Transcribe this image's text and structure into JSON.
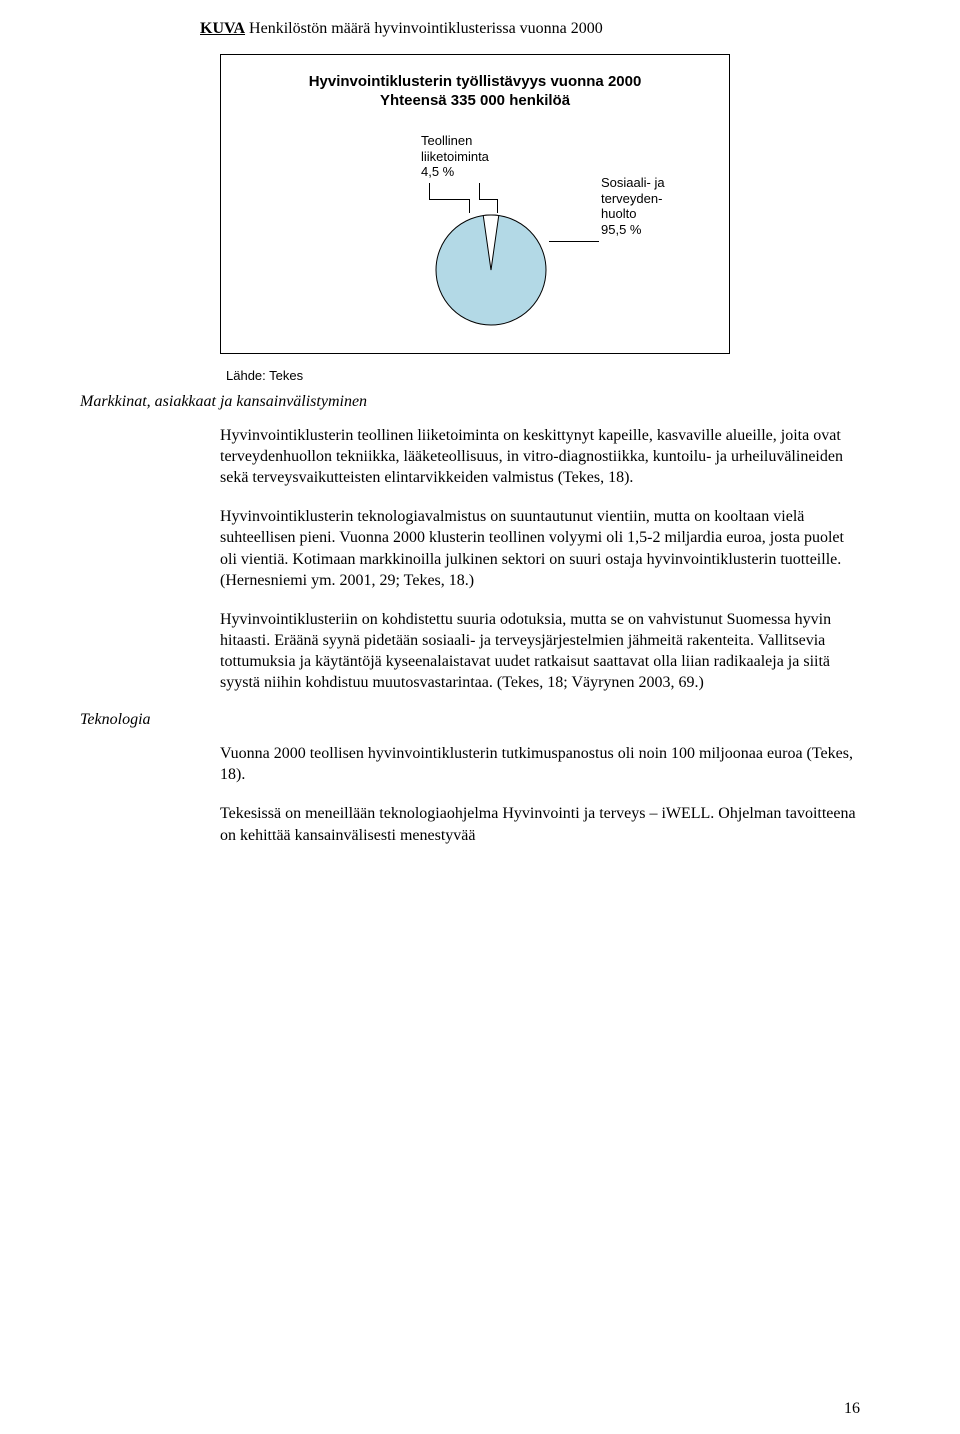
{
  "figure": {
    "kuva_label": "KUVA",
    "title_rest": " Henkilöstön määrä hyvinvointiklusterissa vuonna 2000",
    "chart": {
      "type": "pie",
      "heading_line1": "Hyvinvointiklusterin työllistävyys vuonna 2000",
      "heading_line2": "Yhteensä 335 000 henkilöä",
      "slice_small": {
        "label_line1": "Teollinen",
        "label_line2": "liiketoiminta",
        "label_line3": "4,5 %",
        "value_pct": 4.5,
        "color": "#ffffff"
      },
      "slice_large": {
        "label_line1": "Sosiaali- ja",
        "label_line2": "terveyden-",
        "label_line3": "huolto",
        "label_line4": "95,5 %",
        "value_pct": 95.5,
        "color": "#b3d9e6"
      },
      "outline_color": "#000000",
      "background_color": "#ffffff"
    },
    "source": "Lähde: Tekes"
  },
  "section1_heading": "Markkinat, asiakkaat ja kansainvälistyminen",
  "paragraphs_section1": [
    "Hyvinvointiklusterin teollinen liiketoiminta on keskittynyt kapeille, kasvaville alueille, joita ovat terveydenhuollon tekniikka, lääketeollisuus, in vitro-diagnostiikka, kuntoilu- ja urheiluvälineiden sekä terveysvaikutteisten elintarvikkeiden valmistus (Tekes, 18).",
    "Hyvinvointiklusterin teknologiavalmistus on suuntautunut vientiin, mutta on kooltaan vielä suhteellisen pieni. Vuonna 2000 klusterin teollinen volyymi oli 1,5-2 miljardia euroa, josta puolet oli vientiä. Kotimaan markkinoilla julkinen sektori on suuri ostaja hyvinvointiklusterin tuotteille. (Hernesniemi ym. 2001, 29; Tekes, 18.)",
    "Hyvinvointiklusteriin on kohdistettu suuria odotuksia, mutta se on vahvistunut Suomessa hyvin hitaasti. Eräänä syynä pidetään sosiaali- ja terveysjärjestelmien jähmeitä rakenteita. Vallitsevia tottumuksia ja käytäntöjä kyseenalaistavat uudet ratkaisut saattavat olla liian radikaaleja ja siitä syystä niihin kohdistuu muutosvastarintaa. (Tekes, 18; Väyrynen 2003, 69.)"
  ],
  "section2_heading": "Teknologia",
  "paragraphs_section2": [
    "Vuonna 2000 teollisen hyvinvointiklusterin tutkimuspanostus oli noin 100 miljoonaa euroa (Tekes, 18).",
    "Tekesissä on meneillään teknologiaohjelma Hyvinvointi ja terveys – iWELL. Ohjelman tavoitteena on kehittää kansainvälisesti menestyvää"
  ],
  "page_number": "16"
}
